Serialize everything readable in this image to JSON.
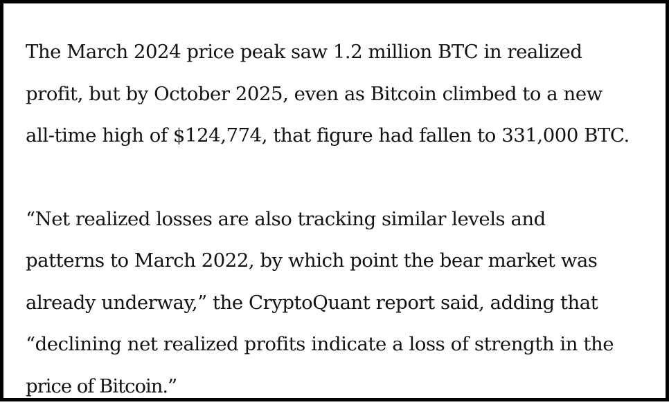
{
  "article": {
    "paragraphs": [
      {
        "lines": [
          "The March 2024 price peak saw 1.2 million BTC in realized",
          "profit, but by October 2025, even as Bitcoin climbed to a new",
          "all-time high of $124,774, that figure had fallen to 331,000 BTC."
        ]
      },
      {
        "lines": [
          "“Net realized losses are also tracking similar levels and",
          "patterns to March 2022, by which point the bear market was",
          "already underway,” the CryptoQuant report said, adding that",
          "“declining net realized profits indicate a loss of strength in the",
          "price of Bitcoin.”"
        ]
      }
    ]
  }
}
